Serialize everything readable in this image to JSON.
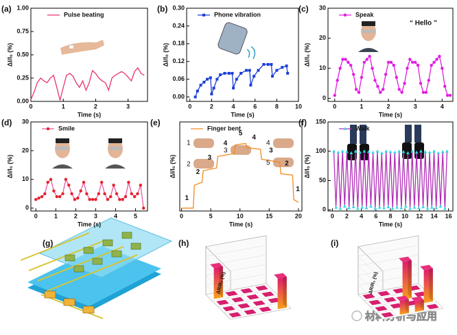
{
  "chart_data": [
    {
      "type": "line",
      "panel_label": "(a)",
      "x_label": "Time (s)",
      "y_label": "ΔI/I₀ (%)",
      "x": [
        0,
        0.1,
        0.2,
        0.3,
        0.4,
        0.5,
        0.6,
        0.7,
        0.8,
        0.9,
        1,
        1.1,
        1.2,
        1.3,
        1.4,
        1.5,
        1.6,
        1.7,
        1.8,
        1.9,
        2,
        2.1,
        2.2,
        2.3,
        2.4,
        2.5,
        2.6,
        2.7,
        2.8,
        2.9,
        3,
        3.1,
        3.2,
        3.3,
        3.4,
        3.5
      ],
      "series": [
        {
          "name": "Pulse beating",
          "color": "#e8336f",
          "marker": "none",
          "values": [
            0.02,
            0.1,
            0.2,
            0.25,
            0.22,
            0.2,
            0.25,
            0.28,
            0.15,
            0.01,
            0.15,
            0.28,
            0.3,
            0.27,
            0.2,
            0.15,
            0.22,
            0.12,
            0.2,
            0.33,
            0.3,
            0.25,
            0.22,
            0.2,
            0.12,
            0.25,
            0.28,
            0.3,
            0.32,
            0.3,
            0.26,
            0.22,
            0.32,
            0.36,
            0.3,
            0.28
          ]
        }
      ],
      "xlim": [
        0,
        3.6
      ],
      "xticks": [
        0,
        1,
        2,
        3
      ],
      "ylim": [
        0,
        1.0
      ],
      "yticks": [
        {
          "value": 0,
          "label": "0.00"
        },
        0.25,
        {
          "value": 0.5,
          "label": "0.50"
        },
        0.75,
        {
          "value": 1,
          "label": "1.00"
        }
      ]
    },
    {
      "type": "line",
      "panel_label": "(b)",
      "x_label": "Time (s)",
      "y_label": "ΔI/I₀ (%)",
      "x": [
        0.5,
        0.7,
        1,
        1.3,
        1.6,
        1.9,
        2,
        2.2,
        2.5,
        2.8,
        3.2,
        3.6,
        3.9,
        4,
        4.3,
        4.7,
        5.2,
        5.5,
        5.6,
        5.9,
        6.3,
        6.8,
        7.2,
        7.5,
        7.6,
        8,
        8.5,
        8.9,
        9
      ],
      "series": [
        {
          "name": "Phone vibration",
          "color": "#1c3fd8",
          "marker": "square",
          "values": [
            0,
            0.02,
            0.04,
            0.05,
            0.06,
            0.065,
            0.01,
            0.03,
            0.06,
            0.075,
            0.08,
            0.08,
            0.08,
            0.03,
            0.06,
            0.08,
            0.09,
            0.09,
            0.04,
            0.07,
            0.09,
            0.11,
            0.11,
            0.11,
            0.07,
            0.09,
            0.1,
            0.105,
            0.08
          ]
        }
      ],
      "xlim": [
        -0.3,
        10
      ],
      "xticks": [
        0,
        2,
        4,
        6,
        8,
        10
      ],
      "ylim": [
        -0.015,
        0.3
      ],
      "yticks": [
        {
          "value": 0,
          "label": "0.00"
        },
        0.06,
        0.12,
        0.18,
        0.24,
        {
          "value": 0.3,
          "label": "0.30"
        }
      ]
    },
    {
      "type": "line",
      "panel_label": "(c)",
      "x_label": "Time (s)",
      "y_label": "ΔI/I₀ (%)",
      "x": [
        0,
        0.1,
        0.2,
        0.3,
        0.4,
        0.5,
        0.6,
        0.7,
        0.8,
        0.9,
        1,
        1.1,
        1.2,
        1.3,
        1.4,
        1.5,
        1.6,
        1.7,
        1.8,
        1.9,
        2,
        2.1,
        2.2,
        2.3,
        2.4,
        2.5,
        2.6,
        2.7,
        2.8,
        2.9,
        3,
        3.1,
        3.2,
        3.3,
        3.4,
        3.5,
        3.6,
        3.7,
        3.8,
        3.9,
        4,
        4.1,
        4.2,
        4.3
      ],
      "series": [
        {
          "name": "Speak",
          "color": "#e21ce0",
          "marker": "circle",
          "values": [
            1,
            6,
            10,
            13,
            13,
            12,
            11,
            8,
            3,
            2,
            7,
            12,
            13,
            14,
            10,
            6,
            4,
            2,
            3,
            8,
            12,
            12,
            11,
            7,
            3,
            2,
            5,
            10,
            13,
            12,
            12,
            11,
            5,
            2,
            2,
            6,
            11,
            12,
            13,
            14,
            10,
            4,
            1,
            1
          ]
        }
      ],
      "annotations": [
        {
          "text": "“ Hello ”",
          "x": 3.3,
          "y": 25
        }
      ],
      "xlim": [
        -0.25,
        4.4
      ],
      "xticks": [
        0,
        1,
        2,
        3,
        4
      ],
      "ylim": [
        -1,
        30
      ],
      "yticks": [
        0,
        10,
        20,
        30
      ]
    },
    {
      "type": "line",
      "panel_label": "(d)",
      "x_label": "Time (s)",
      "y_label": "ΔI/I₀ (%)",
      "x": [
        0,
        0.15,
        0.3,
        0.45,
        0.6,
        0.75,
        0.9,
        1.05,
        1.2,
        1.35,
        1.5,
        1.65,
        1.8,
        1.95,
        2.1,
        2.25,
        2.4,
        2.55,
        2.7,
        2.85,
        3,
        3.15,
        3.3,
        3.45,
        3.6,
        3.75,
        3.9,
        4.05,
        4.2,
        4.35,
        4.5,
        4.65,
        4.8,
        4.95,
        5.1,
        5.25,
        5.4
      ],
      "series": [
        {
          "name": "Smile",
          "color": "#e8202a",
          "marker": "circle",
          "line_color": "#e85aa0",
          "values": [
            3,
            3.5,
            4,
            5,
            9,
            10,
            6,
            4,
            4,
            5,
            10,
            8,
            5,
            3,
            3.5,
            6,
            9,
            5,
            3,
            3,
            3,
            5,
            9,
            5,
            3,
            4,
            8,
            5,
            3,
            3,
            4,
            9,
            5,
            4,
            5,
            8,
            0
          ]
        }
      ],
      "xlim": [
        -0.25,
        5.6
      ],
      "xticks": [
        0,
        1,
        2,
        3,
        4,
        5
      ],
      "ylim": [
        -1,
        30
      ],
      "yticks": [
        0,
        10,
        20,
        30
      ]
    },
    {
      "type": "line",
      "panel_label": "(e)",
      "x_label": "Time (s)",
      "y_label": "ΔI/I₀ (%)",
      "x": [
        0,
        2,
        2.2,
        3.5,
        3.7,
        6,
        6.2,
        9,
        9.2,
        11,
        11.2,
        13.5,
        13.7,
        16.8,
        17,
        19,
        19.2,
        20
      ],
      "series": [
        {
          "name": "Finger bent",
          "color": "#f28a1e",
          "marker": "none",
          "values": [
            2,
            2,
            18,
            20,
            28,
            30,
            38,
            40,
            46,
            47,
            44,
            43,
            36,
            34,
            26,
            25,
            8,
            6
          ]
        }
      ],
      "annotations": [
        {
          "text": "1",
          "x": 0.9,
          "y": 9
        },
        {
          "text": "2",
          "x": 2.8,
          "y": 27
        },
        {
          "text": "3",
          "x": 4.8,
          "y": 37
        },
        {
          "text": "4",
          "x": 7.5,
          "y": 47
        },
        {
          "text": "5",
          "x": 10.1,
          "y": 54
        },
        {
          "text": "4",
          "x": 12.4,
          "y": 51
        },
        {
          "text": "3",
          "x": 15.3,
          "y": 42
        },
        {
          "text": "2",
          "x": 18,
          "y": 33
        },
        {
          "text": "1",
          "x": 19.9,
          "y": 15
        }
      ],
      "photo_labels": [
        "1",
        "2",
        "3",
        "4",
        "5"
      ],
      "xlim": [
        -0.3,
        20.6
      ],
      "xticks": [
        0,
        5,
        10,
        15,
        20
      ],
      "ylim": [
        0,
        62
      ]
    },
    {
      "type": "line",
      "panel_label": "(f)",
      "x_label": "Time (s)",
      "y_label": "ΔI/I₀ (%)",
      "x": [
        0.2,
        0.5,
        0.8,
        1.1,
        1.4,
        1.7,
        2,
        2.3,
        2.6,
        2.9,
        3.2,
        3.5,
        3.8,
        4.1,
        4.4,
        4.7,
        5,
        5.3,
        5.6,
        5.9,
        6.2,
        6.5,
        6.8,
        7.1,
        7.4,
        7.7,
        8,
        8.3,
        8.6,
        8.9,
        9.2,
        9.5,
        9.8,
        10.1,
        10.4,
        10.7,
        11,
        11.3,
        11.6,
        11.9,
        12.2,
        12.5,
        12.8,
        13.1,
        13.4,
        13.7,
        14,
        14.3,
        14.6,
        14.9,
        15.2,
        15.5,
        15.8
      ],
      "series": [
        {
          "name": "Walk",
          "color": "#33d6e6",
          "marker": "triangle",
          "line_color": "#b02fb6",
          "values": [
            100,
            4,
            98,
            2,
            100,
            6,
            99,
            3,
            97,
            5,
            100,
            2,
            98,
            4,
            100,
            3,
            99,
            6,
            98,
            2,
            100,
            4,
            97,
            3,
            100,
            5,
            99,
            2,
            98,
            4,
            100,
            3,
            99,
            6,
            97,
            2,
            100,
            4,
            98,
            3,
            100,
            5,
            99,
            2,
            98,
            4,
            100,
            3,
            97,
            6,
            99,
            2,
            100
          ]
        }
      ],
      "xlim": [
        -0.6,
        16.6
      ],
      "xticks": [
        0,
        2,
        4,
        6,
        8,
        10,
        12,
        14,
        16
      ],
      "ylim": [
        -2,
        150
      ],
      "yticks": [
        0,
        50,
        100,
        150
      ]
    },
    {
      "type": "bar3d",
      "panel_label": "(h)",
      "z_label": "ΔR/R₀ (%)",
      "zlim": [
        0,
        70
      ],
      "values": [
        [
          45,
          0,
          0,
          0
        ],
        [
          0,
          0,
          0,
          0
        ],
        [
          0,
          0,
          0,
          0
        ],
        [
          0,
          0,
          0,
          45
        ]
      ]
    },
    {
      "type": "bar3d",
      "panel_label": "(i)",
      "z_label": "ΔR/R₀ (%)",
      "zlim": [
        0,
        70
      ],
      "values": [
        [
          0,
          0,
          0,
          0
        ],
        [
          0,
          0,
          55,
          0
        ],
        [
          0,
          0,
          0,
          48
        ],
        [
          0,
          20,
          15,
          0
        ]
      ]
    }
  ],
  "diagram": {
    "panel_label": "(g)"
  },
  "watermark": "材料分析与应用"
}
